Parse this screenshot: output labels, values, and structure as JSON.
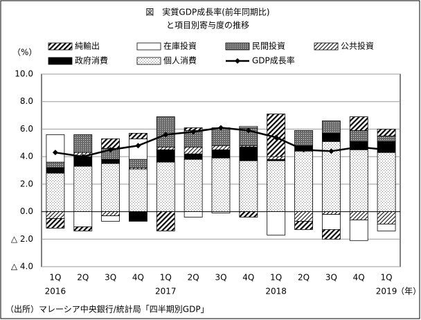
{
  "chart_data": {
    "type": "stacked-bar-line",
    "title": "図　実質GDP成長率(前年同期比)",
    "subtitle": "と項目別寄与度の推移",
    "y_unit": "（%）",
    "source": "（出所）マレーシア中央銀行/統計局「四半期別GDP」",
    "categories": [
      "1Q",
      "2Q",
      "3Q",
      "4Q",
      "1Q",
      "2Q",
      "3Q",
      "4Q",
      "1Q",
      "2Q",
      "3Q",
      "4Q",
      "1Q"
    ],
    "years": [
      "2016",
      null,
      null,
      null,
      "2017",
      null,
      null,
      null,
      "2018",
      null,
      null,
      null,
      "2019"
    ],
    "x_unit": "（年）",
    "ylim": [
      -4,
      10
    ],
    "yticks": [
      {
        "value": 10,
        "label": "10.0"
      },
      {
        "value": 8,
        "label": "8.0"
      },
      {
        "value": 6,
        "label": "6.0"
      },
      {
        "value": 4,
        "label": "4.0"
      },
      {
        "value": 2,
        "label": "2.0"
      },
      {
        "value": 0,
        "label": "0.0"
      },
      {
        "value": -2,
        "label": "△ 2.0"
      },
      {
        "value": -4,
        "label": "△ 4.0"
      }
    ],
    "grid": true,
    "series": [
      {
        "name": "純輸出",
        "type": "bar",
        "pattern": "hatch",
        "color": "#000000",
        "values": [
          -0.7,
          -0.3,
          0.7,
          0.4,
          -1.4,
          0.2,
          0.0,
          -0.4,
          3.1,
          -0.6,
          -0.7,
          1.0,
          0.5
        ]
      },
      {
        "name": "在庫投資",
        "type": "bar",
        "pattern": "none",
        "color": "#000000",
        "values": [
          2.0,
          -1.1,
          -0.4,
          1.5,
          0.0,
          -0.4,
          -0.1,
          0.1,
          -1.7,
          0.0,
          -1.1,
          -1.5,
          -0.5
        ]
      },
      {
        "name": "民間投資",
        "type": "bar",
        "pattern": "graydots",
        "color": "#555555",
        "values": [
          0.4,
          1.3,
          0.8,
          0.6,
          2.2,
          1.2,
          1.3,
          1.3,
          0.0,
          1.1,
          0.9,
          0.8,
          0.4
        ]
      },
      {
        "name": "公共投資",
        "type": "bar",
        "pattern": "lightdiag",
        "color": "#000000",
        "values": [
          -0.5,
          0.3,
          -0.3,
          0.1,
          0.2,
          0.5,
          0.3,
          0.1,
          0.2,
          -0.7,
          -0.2,
          -0.6,
          -0.9
        ]
      },
      {
        "name": "政府消費",
        "type": "bar",
        "pattern": "solid",
        "color": "#000000",
        "values": [
          0.4,
          0.7,
          0.3,
          -0.7,
          0.9,
          0.4,
          0.6,
          1.0,
          0.1,
          0.4,
          0.6,
          0.6,
          0.8
        ]
      },
      {
        "name": "個人消費",
        "type": "bar",
        "pattern": "dots",
        "color": "#000000",
        "values": [
          2.8,
          3.3,
          3.5,
          3.1,
          3.6,
          3.8,
          3.9,
          3.7,
          3.7,
          4.4,
          5.1,
          4.5,
          4.3
        ]
      },
      {
        "name": "GDP成長率",
        "type": "line",
        "color": "#000000",
        "values": [
          4.3,
          4.0,
          4.5,
          4.8,
          5.6,
          5.8,
          6.1,
          5.9,
          5.4,
          4.5,
          4.4,
          4.7,
          4.5
        ]
      }
    ]
  }
}
